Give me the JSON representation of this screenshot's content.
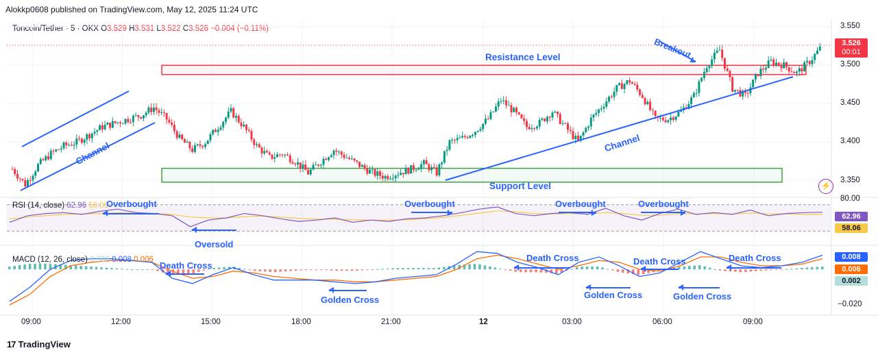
{
  "header": {
    "publisher": "Alokkp0608 published on TradingView.com, May 12, 2025 11:24 UTC"
  },
  "symbol": {
    "name": "Toncoin/Tether",
    "interval": "5",
    "exchange": "OKX",
    "open_label": "O",
    "open": "3.529",
    "high_label": "H",
    "high": "3.531",
    "low_label": "L",
    "low": "3.522",
    "close_label": "C",
    "close": "3.526",
    "change": "−0.004 (−0.11%)"
  },
  "price_badge": {
    "price": "3.526",
    "countdown": "00:01",
    "color": "#f23645"
  },
  "rsi": {
    "label": "RSI (14, close)",
    "value": "62.96",
    "ma_value": "58.06",
    "rsi_color": "#7e57c2",
    "ma_color": "#f7c948"
  },
  "macd": {
    "label": "MACD (12, 26, close)",
    "hist_value": "0.002",
    "macd_value": "0.008",
    "signal_value": "0.006",
    "macd_color": "#2962ff",
    "signal_color": "#ff6d00"
  },
  "annotations": {
    "resistance": "Resistance Level",
    "support": "Support Level",
    "channel": "Channel",
    "breakout": "Breakout",
    "overbought": "Overbought",
    "oversold": "Oversold",
    "death_cross": "Death Cross",
    "golden_cross": "Golden Cross"
  },
  "footer": {
    "brand": "TradingView"
  },
  "chart_data": [
    {
      "type": "candlestick",
      "price_axis_ticks": [
        3.55,
        3.5,
        3.45,
        3.4,
        3.35
      ],
      "ylim": [
        3.33,
        3.56
      ],
      "x_ticks": [
        "09:00",
        "12:00",
        "15:00",
        "18:00",
        "21:00",
        "12",
        "03:00",
        "06:00",
        "09:00"
      ],
      "grid": true,
      "close_path": [
        [
          0,
          3.365
        ],
        [
          4,
          3.345
        ],
        [
          8,
          3.37
        ],
        [
          12,
          3.385
        ],
        [
          16,
          3.395
        ],
        [
          20,
          3.4
        ],
        [
          24,
          3.41
        ],
        [
          28,
          3.42
        ],
        [
          32,
          3.425
        ],
        [
          36,
          3.43
        ],
        [
          40,
          3.435
        ],
        [
          44,
          3.445
        ],
        [
          48,
          3.43
        ],
        [
          52,
          3.405
        ],
        [
          56,
          3.39
        ],
        [
          60,
          3.4
        ],
        [
          64,
          3.42
        ],
        [
          68,
          3.44
        ],
        [
          72,
          3.42
        ],
        [
          76,
          3.395
        ],
        [
          80,
          3.38
        ],
        [
          84,
          3.385
        ],
        [
          88,
          3.375
        ],
        [
          92,
          3.36
        ],
        [
          96,
          3.375
        ],
        [
          100,
          3.39
        ],
        [
          104,
          3.38
        ],
        [
          108,
          3.37
        ],
        [
          112,
          3.36
        ],
        [
          116,
          3.355
        ],
        [
          120,
          3.36
        ],
        [
          124,
          3.365
        ],
        [
          128,
          3.372
        ],
        [
          132,
          3.36
        ],
        [
          136,
          3.4
        ],
        [
          140,
          3.405
        ],
        [
          144,
          3.415
        ],
        [
          148,
          3.43
        ],
        [
          152,
          3.455
        ],
        [
          156,
          3.44
        ],
        [
          160,
          3.42
        ],
        [
          164,
          3.425
        ],
        [
          168,
          3.44
        ],
        [
          172,
          3.42
        ],
        [
          176,
          3.4
        ],
        [
          180,
          3.43
        ],
        [
          184,
          3.45
        ],
        [
          188,
          3.47
        ],
        [
          192,
          3.48
        ],
        [
          196,
          3.46
        ],
        [
          200,
          3.43
        ],
        [
          204,
          3.43
        ],
        [
          208,
          3.44
        ],
        [
          212,
          3.46
        ],
        [
          216,
          3.5
        ],
        [
          220,
          3.52
        ],
        [
          224,
          3.47
        ],
        [
          228,
          3.46
        ],
        [
          232,
          3.49
        ],
        [
          236,
          3.505
        ],
        [
          240,
          3.5
        ],
        [
          244,
          3.49
        ],
        [
          248,
          3.505
        ],
        [
          252,
          3.526
        ]
      ],
      "resistance_zone": [
        3.488,
        3.5
      ],
      "support_zone": [
        3.348,
        3.366
      ],
      "last_price": 3.526
    },
    {
      "type": "line",
      "name": "RSI (14, close)",
      "levels": [
        80,
        20
      ],
      "ylim": [
        0,
        100
      ],
      "axis_ticks": [
        80
      ],
      "series": [
        {
          "name": "RSI",
          "values": [
            40,
            55,
            60,
            62,
            58,
            65,
            70,
            62,
            60,
            55,
            30,
            45,
            50,
            60,
            55,
            48,
            42,
            45,
            50,
            40,
            45,
            42,
            48,
            50,
            55,
            62,
            70,
            75,
            60,
            55,
            60,
            62,
            58,
            72,
            55,
            45,
            60,
            70,
            58,
            62,
            58,
            68,
            55,
            60,
            62,
            63
          ]
        },
        {
          "name": "RSI-based MA",
          "values": [
            48,
            52,
            55,
            58,
            59,
            60,
            62,
            61,
            60,
            58,
            52,
            50,
            50,
            53,
            54,
            52,
            49,
            47,
            47,
            46,
            45,
            45,
            46,
            48,
            51,
            56,
            61,
            66,
            64,
            60,
            59,
            60,
            59,
            62,
            60,
            56,
            56,
            60,
            59,
            60,
            59,
            61,
            59,
            59,
            58,
            58
          ]
        }
      ]
    },
    {
      "type": "line",
      "name": "MACD (12, 26, close)",
      "ylim": [
        -0.025,
        0.012
      ],
      "axis_ticks": [
        -0.02
      ],
      "series": [
        {
          "name": "MACD",
          "values": [
            -0.018,
            -0.01,
            0.0,
            0.005,
            0.006,
            0.006,
            0.005,
            0.004,
            -0.005,
            -0.008,
            -0.003,
            0.001,
            -0.003,
            -0.006,
            -0.006,
            -0.006,
            -0.007,
            -0.008,
            -0.007,
            -0.005,
            -0.004,
            -0.003,
            0.003,
            0.01,
            0.009,
            0.004,
            0.001,
            -0.003,
            0.004,
            0.007,
            0.002,
            -0.004,
            -0.002,
            0.004,
            0.01,
            0.006,
            0.002,
            0.001,
            0.002,
            0.004,
            0.008
          ]
        },
        {
          "name": "Signal",
          "values": [
            -0.02,
            -0.014,
            -0.004,
            0.002,
            0.004,
            0.005,
            0.005,
            0.004,
            -0.001,
            -0.005,
            -0.004,
            -0.001,
            -0.002,
            -0.004,
            -0.005,
            -0.006,
            -0.006,
            -0.007,
            -0.007,
            -0.006,
            -0.005,
            -0.004,
            0.0,
            0.006,
            0.008,
            0.006,
            0.003,
            0.0,
            0.002,
            0.005,
            0.004,
            0.0,
            -0.001,
            0.002,
            0.007,
            0.007,
            0.004,
            0.002,
            0.002,
            0.003,
            0.006
          ]
        }
      ]
    }
  ]
}
